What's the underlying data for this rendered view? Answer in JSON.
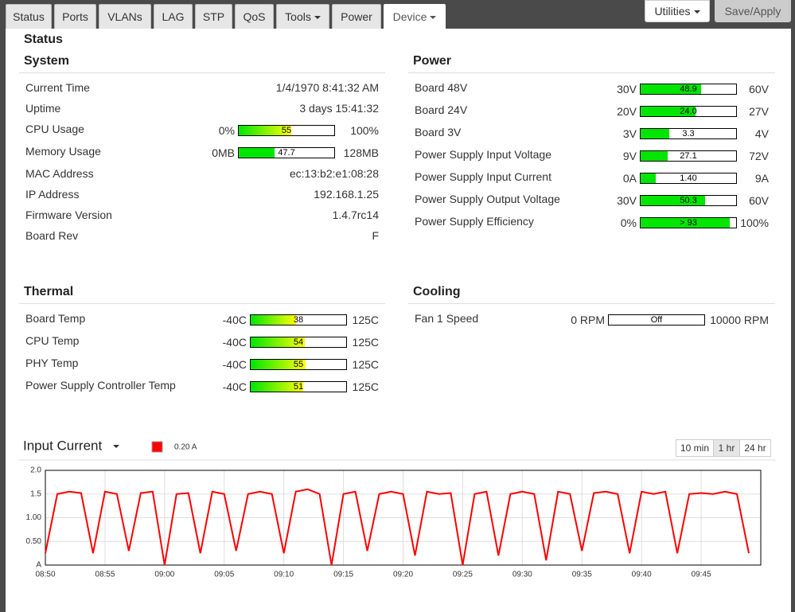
{
  "tabs": [
    "Status",
    "Ports",
    "VLANs",
    "LAG",
    "STP",
    "QoS",
    "Tools",
    "Power",
    "Device"
  ],
  "buttons": {
    "utilities": "Utilities",
    "save": "Save/Apply"
  },
  "page_title": "Status",
  "sections": {
    "system": {
      "title": "System",
      "rows": [
        {
          "label": "Current Time",
          "value": "1/4/1970 8:41:32 AM"
        },
        {
          "label": "Uptime",
          "value": "3 days 15:41:32"
        },
        {
          "label": "CPU Usage",
          "gauge": {
            "min": {
              "value": 0,
              "label": "0%"
            },
            "max": {
              "value": 100,
              "label": "100%"
            },
            "value": 55,
            "colors": [
              "#00e600",
              "#ffff00"
            ]
          }
        },
        {
          "label": "Memory Usage",
          "gauge": {
            "min": {
              "value": 0,
              "label": "0MB"
            },
            "max": {
              "value": 128,
              "label": "128MB"
            },
            "value": 47.7,
            "colors": [
              "#00e600"
            ]
          }
        },
        {
          "label": "MAC Address",
          "value": "ec:13:b2:e1:08:28"
        },
        {
          "label": "IP Address",
          "value": "192.168.1.25"
        },
        {
          "label": "Firmware Version",
          "value": "1.4.7rc14"
        },
        {
          "label": "Board Rev",
          "value": "F"
        }
      ]
    },
    "power": {
      "title": "Power",
      "rows": [
        {
          "label": "Board 48V",
          "gauge": {
            "min": {
              "value": 30,
              "label": "30V"
            },
            "max": {
              "value": 60,
              "label": "60V"
            },
            "value": 48.9,
            "colors": [
              "#00e600"
            ]
          }
        },
        {
          "label": "Board 24V",
          "gauge": {
            "min": {
              "value": 20,
              "label": "20V"
            },
            "max": {
              "value": 27,
              "label": "27V"
            },
            "value": 24,
            "value_label": "24.0",
            "colors": [
              "#00e600"
            ]
          }
        },
        {
          "label": "Board 3V",
          "gauge": {
            "min": {
              "value": 3,
              "label": "3V"
            },
            "max": {
              "value": 4,
              "label": "4V"
            },
            "value": 3.3,
            "colors": [
              "#00e600"
            ]
          }
        },
        {
          "label": "Power Supply Input Voltage",
          "gauge": {
            "min": {
              "value": 9,
              "label": "9V"
            },
            "max": {
              "value": 72,
              "label": "72V"
            },
            "value": 27.1,
            "colors": [
              "#00e600"
            ]
          }
        },
        {
          "label": "Power Supply Input Current",
          "gauge": {
            "min": {
              "value": 0,
              "label": "0A"
            },
            "max": {
              "value": 9,
              "label": "9A"
            },
            "value": 1.4,
            "value_label": "1.40",
            "colors": [
              "#00e600"
            ]
          }
        },
        {
          "label": "Power Supply Output Voltage",
          "gauge": {
            "min": {
              "value": 30,
              "label": "30V"
            },
            "max": {
              "value": 60,
              "label": "60V"
            },
            "value": 50.3,
            "colors": [
              "#00e600"
            ]
          }
        },
        {
          "label": "Power Supply Efficiency",
          "gauge": {
            "min": {
              "value": 0,
              "label": "0%"
            },
            "max": {
              "value": 100,
              "label": "100%"
            },
            "value": 93,
            "value_label": "> 93",
            "colors": [
              "#00e600"
            ]
          }
        }
      ]
    },
    "thermal": {
      "title": "Thermal",
      "rows": [
        {
          "label": "Board Temp",
          "gauge": {
            "min": {
              "value": -40,
              "label": "-40C"
            },
            "max": {
              "value": 125,
              "label": "125C"
            },
            "value": 38,
            "colors": [
              "#00e600",
              "#ffff00"
            ]
          }
        },
        {
          "label": "CPU Temp",
          "gauge": {
            "min": {
              "value": -40,
              "label": "-40C"
            },
            "max": {
              "value": 125,
              "label": "125C"
            },
            "value": 54,
            "colors": [
              "#00e600",
              "#ffff00"
            ]
          }
        },
        {
          "label": "PHY Temp",
          "gauge": {
            "min": {
              "value": -40,
              "label": "-40C"
            },
            "max": {
              "value": 125,
              "label": "125C"
            },
            "value": 55,
            "colors": [
              "#00e600",
              "#ffff00"
            ]
          }
        },
        {
          "label": "Power Supply Controller Temp",
          "gauge": {
            "min": {
              "value": -40,
              "label": "-40C"
            },
            "max": {
              "value": 125,
              "label": "125C"
            },
            "value": 51,
            "colors": [
              "#00e600",
              "#ffff00"
            ]
          }
        }
      ]
    },
    "cooling": {
      "title": "Cooling",
      "rows": [
        {
          "label": "Fan 1 Speed",
          "gauge": {
            "min": {
              "value": 0,
              "label": "0 RPM"
            },
            "max": {
              "value": 10000,
              "label": "10000 RPM"
            },
            "value": 0,
            "value_label": "Off",
            "colors": [
              "#00e600"
            ]
          }
        }
      ]
    }
  },
  "chart_controls": [
    "10 min",
    "1 hr",
    "24 hr"
  ],
  "chart_data": {
    "type": "line",
    "title": "Input Current",
    "x": [
      "08:50",
      "08:51",
      "08:52",
      "08:53",
      "08:54",
      "08:55",
      "08:56",
      "08:57",
      "08:58",
      "08:59",
      "09:00",
      "09:01",
      "09:02",
      "09:03",
      "09:04",
      "09:05",
      "09:06",
      "09:07",
      "09:08",
      "09:09",
      "09:10",
      "09:11",
      "09:12",
      "09:13",
      "09:14",
      "09:15",
      "09:16",
      "09:17",
      "09:18",
      "09:19",
      "09:20",
      "09:21",
      "09:22",
      "09:23",
      "09:24",
      "09:25",
      "09:26",
      "09:27",
      "09:28",
      "09:29",
      "09:30",
      "09:31",
      "09:32",
      "09:33",
      "09:34",
      "09:35",
      "09:36",
      "09:37",
      "09:38",
      "09:39",
      "09:40",
      "09:41",
      "09:42",
      "09:43",
      "09:44",
      "09:45",
      "09:46",
      "09:47",
      "09:48",
      "09:49"
    ],
    "series": [
      {
        "name": "0.20 A",
        "color": "#ff0000",
        "values": [
          0.25,
          1.5,
          1.55,
          1.52,
          0.25,
          1.55,
          1.5,
          0.3,
          1.52,
          1.55,
          0.0,
          1.5,
          1.52,
          0.25,
          1.55,
          1.5,
          0.3,
          1.5,
          1.55,
          1.5,
          0.25,
          1.55,
          1.6,
          1.5,
          0.0,
          1.5,
          1.55,
          0.3,
          1.5,
          1.55,
          1.5,
          0.2,
          1.55,
          1.5,
          1.52,
          0.0,
          1.5,
          1.55,
          0.2,
          1.5,
          1.55,
          1.5,
          0.1,
          1.55,
          1.5,
          0.3,
          1.52,
          1.55,
          1.5,
          0.25,
          1.55,
          1.5,
          1.55,
          0.25,
          1.5,
          1.52,
          1.5,
          1.55,
          1.5,
          0.25
        ]
      }
    ],
    "xlim": [
      "08:50",
      "09:50"
    ],
    "xticks": [
      "08:50",
      "08:55",
      "09:00",
      "09:05",
      "09:10",
      "09:15",
      "09:20",
      "09:25",
      "09:30",
      "09:35",
      "09:40",
      "09:45"
    ],
    "ylim": [
      0,
      2
    ],
    "yticks": [
      {
        "value": 0,
        "label": "A"
      },
      {
        "value": 0.5,
        "label": "0.50"
      },
      {
        "value": 1,
        "label": "1.00"
      },
      1.5,
      {
        "value": 2,
        "label": "2.0"
      }
    ],
    "grid": true
  }
}
